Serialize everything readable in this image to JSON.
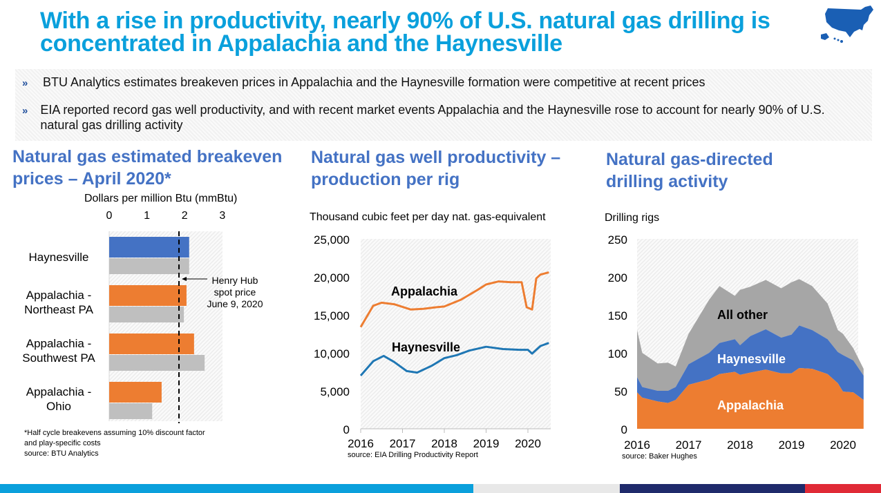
{
  "title": "With a rise in productivity, nearly 90% of U.S. natural gas drilling is concentrated in Appalachia and the Haynesville",
  "logo_icon": "us-map-icon",
  "bullets": [
    "BTU Analytics estimates breakeven prices in Appalachia and the Haynesville formation were competitive at recent prices",
    "EIA reported record gas well productivity, and with recent market events Appalachia and the Haynesville rose to account for nearly 90% of U.S. natural gas drilling activity"
  ],
  "bullet_marker": "»",
  "colors": {
    "title": "#0aa0dc",
    "heading": "#4472c4",
    "orange": "#ed7d31",
    "blue": "#4472c4",
    "gray": "#bfbfbf",
    "line_blue": "#1f77b4",
    "stripes": [
      "#0aa0dc",
      "#e8e8e8",
      "#1f2a6b",
      "#e02a36"
    ]
  },
  "chart_data": [
    {
      "type": "bar",
      "title": "Natural gas estimated breakeven prices – April 2020*",
      "xlabel": "Dollars per million Btu (mmBtu)",
      "xlim": [
        0,
        3
      ],
      "xticks": [
        "0",
        "1",
        "2",
        "3"
      ],
      "categories": [
        "Haynesville",
        "Appalachia - Northeast PA",
        "Appalachia - Southwest PA",
        "Appalachia - Ohio"
      ],
      "series": [
        {
          "values": [
            2.12,
            2.05,
            2.25,
            1.39
          ]
        },
        {
          "values": [
            2.12,
            1.98,
            2.53,
            1.14
          ]
        }
      ],
      "reference_line": {
        "value": 1.85,
        "label": [
          "Henry Hub",
          "spot price",
          "June 9, 2020"
        ]
      },
      "footnote": [
        "*Half cycle breakevens assuming 10% discount factor",
        "and play-specific costs",
        "source:  BTU Analytics"
      ]
    },
    {
      "type": "line",
      "title": "Natural gas well productivity – production per rig",
      "ylabel": "Thousand cubic feet per day nat. gas-equivalent",
      "ylim": [
        0,
        25000
      ],
      "yticks": [
        "0",
        "5,000",
        "10,000",
        "15,000",
        "20,000",
        "25,000"
      ],
      "xticks": [
        "2016",
        "2017",
        "2018",
        "2019",
        "2020"
      ],
      "xlim": [
        2016,
        2020.5
      ],
      "series": [
        {
          "name": "Appalachia",
          "x": [
            2016,
            2016.3,
            2016.5,
            2016.8,
            2017.2,
            2017.5,
            2017.8,
            2018,
            2018.4,
            2018.8,
            2019,
            2019.3,
            2019.6,
            2019.85,
            2019.97,
            2020.1,
            2020.2,
            2020.3,
            2020.5
          ],
          "y": [
            13400,
            16200,
            16600,
            16400,
            15700,
            15800,
            16000,
            16100,
            17000,
            18300,
            19000,
            19400,
            19300,
            19300,
            16000,
            15700,
            19800,
            20300,
            20600
          ]
        },
        {
          "name": "Haynesville",
          "x": [
            2016,
            2016.3,
            2016.55,
            2016.8,
            2017.1,
            2017.35,
            2017.7,
            2018,
            2018.3,
            2018.6,
            2019,
            2019.4,
            2019.8,
            2020,
            2020.1,
            2020.3,
            2020.5
          ],
          "y": [
            7000,
            8900,
            9600,
            8800,
            7600,
            7400,
            8300,
            9300,
            9700,
            10300,
            10800,
            10500,
            10400,
            10400,
            9900,
            10900,
            11300
          ]
        }
      ],
      "source": "source:  EIA Drilling Productivity Report"
    },
    {
      "type": "area",
      "stacked": true,
      "title": "Natural gas-directed drilling activity",
      "ylabel": "Drilling rigs",
      "ylim": [
        0,
        250
      ],
      "yticks": [
        "0",
        "50",
        "100",
        "150",
        "200",
        "250"
      ],
      "xticks": [
        "2016",
        "2017",
        "2018",
        "2019",
        "2020"
      ],
      "xlim": [
        2016,
        2020.4
      ],
      "x": [
        2016,
        2016.1,
        2016.4,
        2016.6,
        2016.75,
        2017,
        2017.4,
        2017.6,
        2017.9,
        2018,
        2018.2,
        2018.5,
        2018.8,
        2019,
        2019.15,
        2019.4,
        2019.7,
        2019.9,
        2020,
        2020.2,
        2020.4
      ],
      "series": [
        {
          "name": "Appalachia",
          "values": [
            48,
            41,
            36,
            34,
            38,
            58,
            65,
            72,
            75,
            71,
            74,
            78,
            73,
            73,
            80,
            79,
            72,
            60,
            49,
            48,
            38
          ]
        },
        {
          "name": "Haynesville",
          "values": [
            20,
            14,
            14,
            16,
            17,
            27,
            35,
            41,
            43,
            39,
            48,
            53,
            47,
            51,
            56,
            51,
            46,
            41,
            48,
            42,
            32
          ]
        },
        {
          "name": "All other",
          "values": [
            62,
            45,
            36,
            37,
            27,
            40,
            70,
            75,
            57,
            73,
            65,
            65,
            65,
            69,
            61,
            58,
            47,
            29,
            28,
            16,
            9
          ]
        }
      ],
      "source": "source:  Baker Hughes"
    }
  ]
}
